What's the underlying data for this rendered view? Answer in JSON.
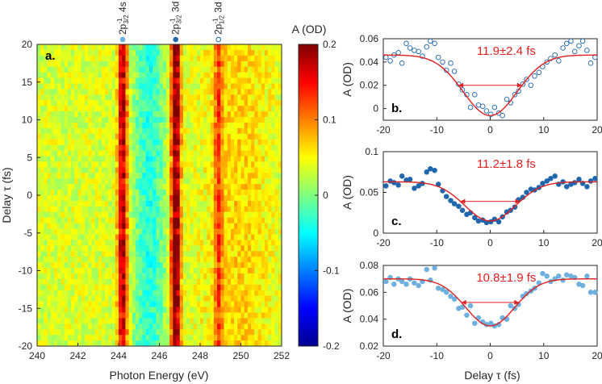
{
  "chart_data": [
    {
      "type": "heatmap",
      "panel": "a.",
      "xlabel": "Photon Energy (eV)",
      "ylabel": "Delay τ (fs)",
      "xlim": [
        240,
        252
      ],
      "ylim": [
        -20,
        20
      ],
      "xticks": [
        "240",
        "242",
        "244",
        "246",
        "248",
        "250",
        "252"
      ],
      "yticks": [
        "-20",
        "-15",
        "-10",
        "-5",
        "0",
        "5",
        "10",
        "15",
        "20"
      ],
      "colorbar": {
        "title": "A (OD)",
        "range": [
          -0.2,
          0.2
        ],
        "ticks": [
          "0.2",
          "0.1",
          "0",
          "-0.1",
          "-0.2"
        ]
      },
      "features": [
        {
          "energy": 244.2,
          "label_main": "2p",
          "label_sup": "-1",
          "label_sub": "3/2",
          "label_tail": " 4s",
          "marker": "filled-light"
        },
        {
          "energy": 246.8,
          "label_main": "2p",
          "label_sup": "-1",
          "label_sub": "3/2",
          "label_tail": " 3d",
          "marker": "filled-dark"
        },
        {
          "energy": 248.9,
          "label_main": "2p",
          "label_sup": "-1",
          "label_sub": "1/2",
          "label_tail": " 3d",
          "marker": "open"
        }
      ]
    },
    {
      "type": "scatter",
      "panel": "b.",
      "xlabel": "",
      "ylabel": "A (OD)",
      "xlim": [
        -20,
        20
      ],
      "ylim": [
        -0.01,
        0.06
      ],
      "xticks": [
        "-20",
        "-10",
        "0",
        "10",
        "20"
      ],
      "yticks": [
        "0.06",
        "0.04",
        "0.02",
        "0"
      ],
      "marker": "open",
      "fit_label": "11.9±2.4 fs",
      "fit": {
        "baseline": 0.046,
        "depth": 0.052,
        "center": 0,
        "fwhm": 11.9
      },
      "x": [
        -19.5,
        -18.7,
        -18,
        -17.2,
        -16.5,
        -15.7,
        -15,
        -14.2,
        -13.4,
        -12.7,
        -11.9,
        -11.2,
        -10.4,
        -9.7,
        -8.9,
        -8.2,
        -7.4,
        -6.7,
        -5.9,
        -5.2,
        -4.4,
        -3.7,
        -2.9,
        -2.2,
        -1.4,
        -0.7,
        0.1,
        0.8,
        1.6,
        2.3,
        3.1,
        3.8,
        4.6,
        5.3,
        6.1,
        6.8,
        7.6,
        8.3,
        9.1,
        9.8,
        10.6,
        11.3,
        12.1,
        12.8,
        13.6,
        14.3,
        15.1,
        15.8,
        16.6,
        17.3,
        18.1,
        18.8,
        19.6
      ],
      "y": [
        0.044,
        0.041,
        0.046,
        0.048,
        0.039,
        0.056,
        0.052,
        0.05,
        0.049,
        0.045,
        0.053,
        0.058,
        0.056,
        0.044,
        0.04,
        0.033,
        0.039,
        0.032,
        0.021,
        0.016,
        0.012,
        0.001,
        0.012,
        0.003,
        0.002,
        -0.002,
        -0.005,
        0.001,
        -0.004,
        -0.006,
        0.008,
        0.005,
        0.012,
        0.015,
        0.021,
        0.025,
        0.02,
        0.028,
        0.031,
        0.036,
        0.04,
        0.043,
        0.046,
        0.041,
        0.052,
        0.056,
        0.058,
        0.049,
        0.054,
        0.058,
        0.05,
        0.039,
        0.044
      ]
    },
    {
      "type": "scatter",
      "panel": "c.",
      "xlabel": "",
      "ylabel": "A (OD)",
      "xlim": [
        -20,
        20
      ],
      "ylim": [
        0,
        0.1
      ],
      "xticks": [
        "-20",
        "-10",
        "0",
        "10",
        "20"
      ],
      "yticks": [
        "0.1",
        "0.05",
        "0"
      ],
      "marker": "filled-dark",
      "fit_label": "11.2±1.8 fs",
      "fit": {
        "baseline": 0.063,
        "depth": 0.048,
        "center": 0,
        "fwhm": 11.2
      },
      "x": [
        -19.5,
        -18.7,
        -18,
        -17.2,
        -16.5,
        -15.7,
        -15,
        -14.2,
        -13.4,
        -12.7,
        -11.9,
        -11.2,
        -10.4,
        -9.7,
        -8.9,
        -8.2,
        -7.4,
        -6.7,
        -5.9,
        -5.2,
        -4.4,
        -3.7,
        -2.9,
        -2.2,
        -1.4,
        -0.7,
        0.1,
        0.8,
        1.6,
        2.3,
        3.1,
        3.8,
        4.6,
        5.3,
        6.1,
        6.8,
        7.6,
        8.3,
        9.1,
        9.8,
        10.6,
        11.3,
        12.1,
        12.8,
        13.6,
        14.3,
        15.1,
        15.8,
        16.6,
        17.3,
        18.1,
        18.8,
        19.6
      ],
      "y": [
        0.058,
        0.064,
        0.062,
        0.059,
        0.07,
        0.065,
        0.066,
        0.055,
        0.058,
        0.061,
        0.075,
        0.079,
        0.077,
        0.06,
        0.052,
        0.045,
        0.04,
        0.036,
        0.033,
        0.028,
        0.023,
        0.025,
        0.019,
        0.015,
        0.016,
        0.013,
        0.014,
        0.017,
        0.014,
        0.02,
        0.026,
        0.028,
        0.032,
        0.041,
        0.044,
        0.05,
        0.054,
        0.053,
        0.056,
        0.061,
        0.064,
        0.067,
        0.07,
        0.06,
        0.063,
        0.057,
        0.06,
        0.062,
        0.066,
        0.061,
        0.057,
        0.064,
        0.067
      ]
    },
    {
      "type": "scatter",
      "panel": "d.",
      "xlabel": "Delay τ (fs)",
      "ylabel": "A (OD)",
      "xlim": [
        -20,
        20
      ],
      "ylim": [
        0.02,
        0.08
      ],
      "xticks": [
        "-20",
        "-10",
        "0",
        "10",
        "20"
      ],
      "yticks": [
        "0.08",
        "0.06",
        "0.04",
        "0.02"
      ],
      "marker": "filled-light",
      "fit_label": "10.8±1.9 fs",
      "fit": {
        "baseline": 0.07,
        "depth": 0.035,
        "center": 0,
        "fwhm": 10.8
      },
      "x": [
        -19.5,
        -18.7,
        -18,
        -17.2,
        -16.5,
        -15.7,
        -15,
        -14.2,
        -13.4,
        -12.7,
        -11.9,
        -11.2,
        -10.4,
        -9.7,
        -8.9,
        -8.2,
        -7.4,
        -6.7,
        -5.9,
        -5.2,
        -4.4,
        -3.7,
        -2.9,
        -2.2,
        -1.4,
        -0.7,
        0.1,
        0.8,
        1.6,
        2.3,
        3.1,
        3.8,
        4.6,
        5.3,
        6.1,
        6.8,
        7.6,
        8.3,
        9.1,
        9.8,
        10.6,
        11.3,
        12.1,
        12.8,
        13.6,
        14.3,
        15.1,
        15.8,
        16.6,
        17.3,
        18.1,
        18.8,
        19.6
      ],
      "y": [
        0.068,
        0.071,
        0.066,
        0.07,
        0.068,
        0.066,
        0.07,
        0.067,
        0.065,
        0.068,
        0.077,
        0.069,
        0.078,
        0.063,
        0.062,
        0.06,
        0.057,
        0.055,
        0.048,
        0.049,
        0.043,
        0.05,
        0.037,
        0.041,
        0.038,
        0.036,
        0.037,
        0.035,
        0.036,
        0.041,
        0.04,
        0.05,
        0.048,
        0.051,
        0.057,
        0.059,
        0.061,
        0.063,
        0.067,
        0.074,
        0.072,
        0.068,
        0.07,
        0.072,
        0.069,
        0.073,
        0.072,
        0.071,
        0.066,
        0.065,
        0.072,
        0.06,
        0.06
      ]
    }
  ]
}
